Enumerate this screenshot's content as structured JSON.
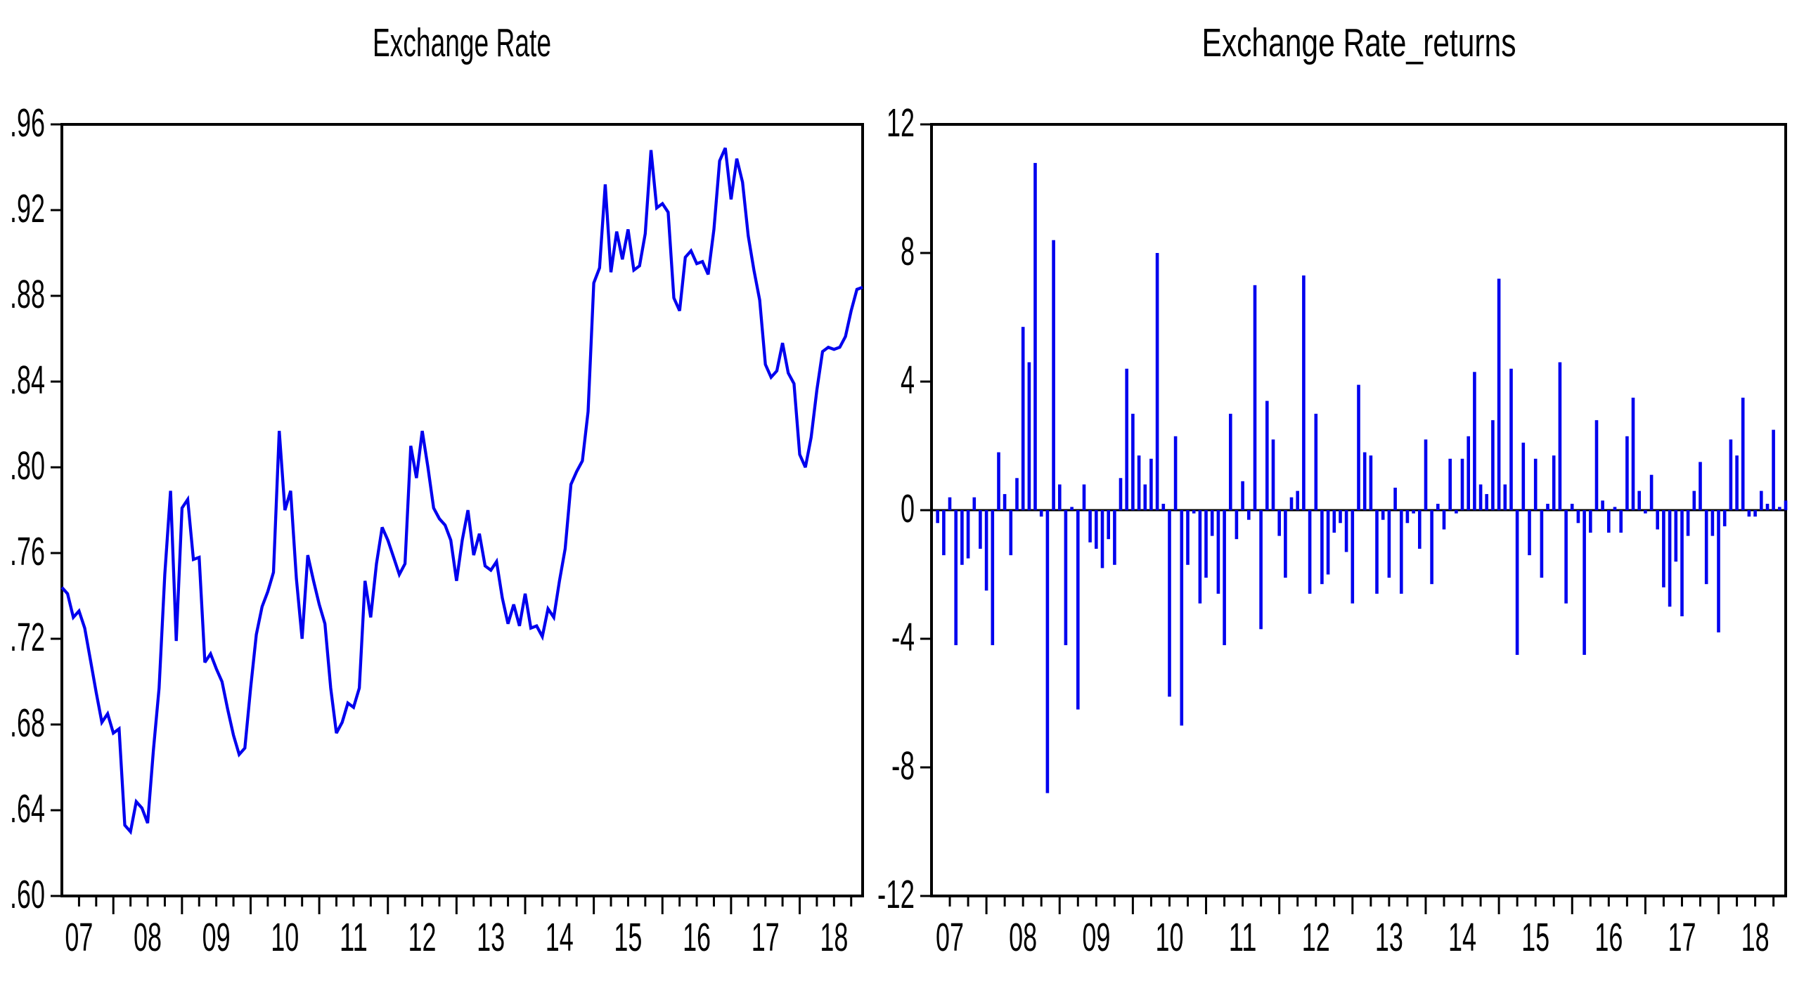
{
  "figure": {
    "background": "#ffffff",
    "axis_color": "#000000",
    "series_color": "#0000EE"
  },
  "chart_data": [
    {
      "type": "line",
      "title": "Exchange Rate",
      "ylabel": "",
      "xlabel": "",
      "ylim": [
        0.6,
        0.96
      ],
      "y_ticks": [
        0.6,
        0.64,
        0.68,
        0.72,
        0.76,
        0.8,
        0.84,
        0.88,
        0.92,
        0.96
      ],
      "y_tick_labels": [
        ".60",
        ".64",
        ".68",
        ".72",
        ".76",
        ".80",
        ".84",
        ".88",
        ".92",
        ".96"
      ],
      "x_tick_labels": [
        "07",
        "08",
        "09",
        "10",
        "11",
        "12",
        "13",
        "14",
        "15",
        "16",
        "17",
        "18"
      ],
      "points_per_year": 12,
      "grid": false,
      "legend": false,
      "line_color": "#0000EE",
      "values": [
        0.744,
        0.741,
        0.73,
        0.733,
        0.725,
        0.71,
        0.695,
        0.681,
        0.685,
        0.676,
        0.678,
        0.633,
        0.63,
        0.644,
        0.641,
        0.634,
        0.668,
        0.697,
        0.75,
        0.789,
        0.719,
        0.781,
        0.785,
        0.757,
        0.758,
        0.709,
        0.713,
        0.706,
        0.7,
        0.687,
        0.675,
        0.666,
        0.669,
        0.697,
        0.722,
        0.735,
        0.742,
        0.751,
        0.817,
        0.78,
        0.789,
        0.748,
        0.72,
        0.759,
        0.747,
        0.736,
        0.727,
        0.697,
        0.676,
        0.681,
        0.69,
        0.688,
        0.697,
        0.747,
        0.73,
        0.755,
        0.772,
        0.766,
        0.758,
        0.75,
        0.755,
        0.81,
        0.795,
        0.817,
        0.8,
        0.781,
        0.776,
        0.773,
        0.766,
        0.747,
        0.766,
        0.78,
        0.759,
        0.769,
        0.754,
        0.752,
        0.756,
        0.739,
        0.727,
        0.736,
        0.726,
        0.741,
        0.725,
        0.726,
        0.721,
        0.734,
        0.73,
        0.747,
        0.762,
        0.792,
        0.798,
        0.803,
        0.826,
        0.886,
        0.893,
        0.932,
        0.891,
        0.91,
        0.897,
        0.911,
        0.892,
        0.894,
        0.909,
        0.948,
        0.921,
        0.923,
        0.919,
        0.879,
        0.873,
        0.898,
        0.901,
        0.895,
        0.896,
        0.89,
        0.911,
        0.943,
        0.949,
        0.925,
        0.944,
        0.933,
        0.908,
        0.892,
        0.878,
        0.848,
        0.842,
        0.845,
        0.858,
        0.844,
        0.839,
        0.806,
        0.8,
        0.814,
        0.836,
        0.854,
        0.856,
        0.855,
        0.856,
        0.861,
        0.873,
        0.883,
        0.884
      ]
    },
    {
      "type": "bar",
      "title": "Exchange Rate_returns",
      "ylabel": "",
      "xlabel": "",
      "ylim": [
        -12,
        12
      ],
      "y_ticks": [
        -12,
        -8,
        -4,
        0,
        4,
        8,
        12
      ],
      "y_tick_labels": [
        "-12",
        "-8",
        "-4",
        "0",
        "4",
        "8",
        "12"
      ],
      "x_tick_labels": [
        "07",
        "08",
        "09",
        "10",
        "11",
        "12",
        "13",
        "14",
        "15",
        "16",
        "17",
        "18"
      ],
      "points_per_year": 12,
      "grid": false,
      "legend": false,
      "bar_color": "#0000EE",
      "values": [
        -0.4,
        -1.4,
        0.4,
        -4.2,
        -1.7,
        -1.5,
        0.4,
        -1.2,
        -2.5,
        -4.2,
        1.8,
        0.5,
        -1.4,
        1.0,
        5.7,
        4.6,
        10.8,
        -0.2,
        -8.8,
        8.4,
        0.8,
        -4.2,
        0.1,
        -6.2,
        0.8,
        -1.0,
        -1.2,
        -1.8,
        -0.9,
        -1.7,
        1.0,
        4.4,
        3.0,
        1.7,
        0.8,
        1.6,
        8.0,
        0.2,
        -5.8,
        2.3,
        -6.7,
        -1.7,
        -0.1,
        -2.9,
        -2.1,
        -0.8,
        -2.6,
        -4.2,
        3.0,
        -0.9,
        0.9,
        -0.3,
        7.0,
        -3.7,
        3.4,
        2.2,
        -0.8,
        -2.1,
        0.4,
        0.6,
        7.3,
        -2.6,
        3.0,
        -2.3,
        -2.0,
        -0.7,
        -0.4,
        -1.3,
        -2.9,
        3.9,
        1.8,
        1.7,
        -2.6,
        -0.3,
        -2.1,
        0.7,
        -2.6,
        -0.4,
        -0.1,
        -1.2,
        2.2,
        -2.3,
        0.2,
        -0.6,
        1.6,
        -0.1,
        1.6,
        2.3,
        4.3,
        0.8,
        0.5,
        2.8,
        7.2,
        0.8,
        4.4,
        -4.5,
        2.1,
        -1.4,
        1.6,
        -2.1,
        0.2,
        1.7,
        4.6,
        -2.9,
        0.2,
        -0.4,
        -4.5,
        -0.7,
        2.8,
        0.3,
        -0.7,
        0.1,
        -0.7,
        2.3,
        3.5,
        0.6,
        -0.1,
        1.1,
        -0.6,
        -2.4,
        -3.0,
        -1.6,
        -3.3,
        -0.8,
        0.6,
        1.5,
        -2.3,
        -0.8,
        -3.8,
        -0.5,
        2.2,
        1.7,
        3.5,
        -0.2,
        -0.2,
        0.6,
        0.2,
        2.5,
        0.1,
        0.3
      ]
    }
  ]
}
